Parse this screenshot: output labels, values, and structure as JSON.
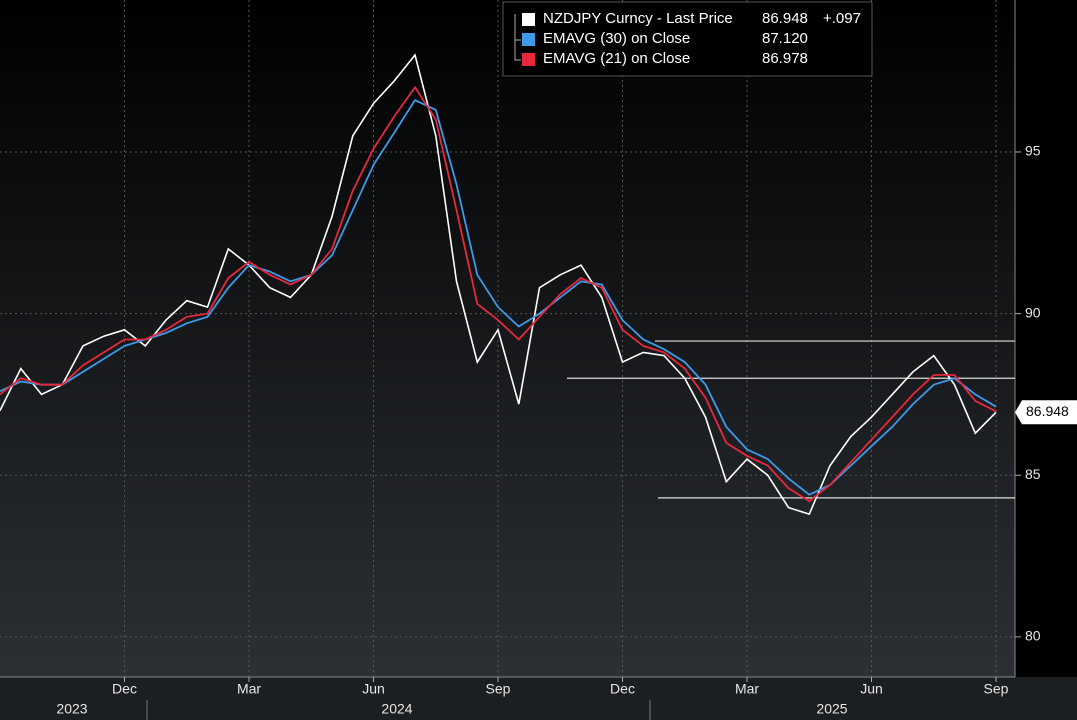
{
  "chart_data": {
    "type": "line",
    "categories": [
      null,
      null,
      null,
      null,
      null,
      null,
      "Dec",
      null,
      null,
      null,
      null,
      null,
      "Mar",
      null,
      null,
      null,
      null,
      null,
      "Jun",
      null,
      null,
      null,
      null,
      null,
      "Sep",
      null,
      null,
      null,
      null,
      null,
      "Dec",
      null,
      null,
      null,
      null,
      null,
      "Mar",
      null,
      null,
      null,
      null,
      null,
      "Jun",
      null,
      null,
      null,
      null,
      null,
      "Sep"
    ],
    "year_labels": [
      "2023",
      "2024",
      "2025"
    ],
    "series": [
      {
        "name": "NZDJPY Curncy - Last Price",
        "color": "#ffffff",
        "legend_value": "86.948",
        "change": "+.097",
        "values": [
          87.0,
          88.3,
          87.5,
          87.8,
          89.0,
          89.3,
          89.5,
          89.0,
          89.8,
          90.4,
          90.2,
          92.0,
          91.5,
          90.8,
          90.5,
          91.2,
          93.0,
          95.5,
          96.5,
          97.2,
          98.0,
          95.5,
          91.0,
          88.5,
          89.5,
          87.2,
          90.8,
          91.2,
          91.5,
          90.5,
          88.5,
          88.8,
          88.7,
          88.0,
          86.8,
          84.8,
          85.5,
          85.0,
          84.0,
          83.8,
          85.3,
          86.2,
          86.8,
          87.5,
          88.2,
          88.7,
          87.8,
          86.3,
          86.948
        ]
      },
      {
        "name": "EMAVG (30)  on Close",
        "color": "#3d9be9",
        "legend_value": "87.120",
        "values": [
          87.6,
          87.9,
          87.8,
          87.8,
          88.2,
          88.6,
          89.0,
          89.2,
          89.4,
          89.7,
          89.9,
          90.8,
          91.5,
          91.3,
          91.0,
          91.2,
          91.8,
          93.2,
          94.6,
          95.6,
          96.6,
          96.3,
          94.0,
          91.2,
          90.2,
          89.6,
          90.0,
          90.5,
          91.0,
          90.9,
          89.8,
          89.2,
          88.9,
          88.5,
          87.8,
          86.5,
          85.8,
          85.5,
          84.9,
          84.4,
          84.7,
          85.3,
          85.9,
          86.5,
          87.2,
          87.8,
          88.0,
          87.5,
          87.12
        ]
      },
      {
        "name": "EMAVG (21)  on Close",
        "color": "#e8283c",
        "legend_value": "86.978",
        "values": [
          87.5,
          88.0,
          87.8,
          87.8,
          88.4,
          88.8,
          89.2,
          89.2,
          89.5,
          89.9,
          90.0,
          91.1,
          91.6,
          91.2,
          90.9,
          91.2,
          92.0,
          93.8,
          95.1,
          96.1,
          97.0,
          96.0,
          93.2,
          90.3,
          89.8,
          89.2,
          89.9,
          90.6,
          91.1,
          90.8,
          89.5,
          89.0,
          88.8,
          88.3,
          87.4,
          86.0,
          85.6,
          85.3,
          84.6,
          84.2,
          84.7,
          85.4,
          86.1,
          86.8,
          87.5,
          88.1,
          88.1,
          87.3,
          86.978
        ]
      }
    ],
    "hlines": [
      89.15,
      88.0,
      84.3
    ],
    "ylim": [
      78.76,
      99.7
    ],
    "yticks": [
      80,
      85,
      90,
      95
    ],
    "grid": true
  }
}
